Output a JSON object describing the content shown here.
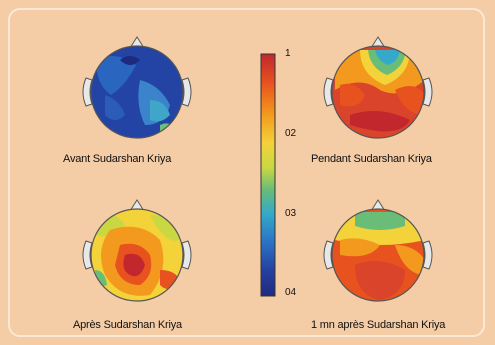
{
  "maps": [
    {
      "label": "Avant Sudarshan Kriya"
    },
    {
      "label": "Pendant Sudarshan Kriya"
    },
    {
      "label": "Après Sudarshan Kriya"
    },
    {
      "label": "1 mn après Sudarshan Kriya"
    }
  ],
  "scale": {
    "ticks": [
      "1",
      "02",
      "03",
      "04"
    ],
    "colors_top_to_bottom": [
      "#c1272d",
      "#e8521f",
      "#f39a1e",
      "#f3d23a",
      "#c9d743",
      "#69bd76",
      "#35a9c9",
      "#2a72c3",
      "#253e9e",
      "#1f2b80"
    ]
  },
  "colors": {
    "background": "#f4cca6",
    "frame": "#fbe9d6",
    "scalp_outline": "#555555"
  }
}
